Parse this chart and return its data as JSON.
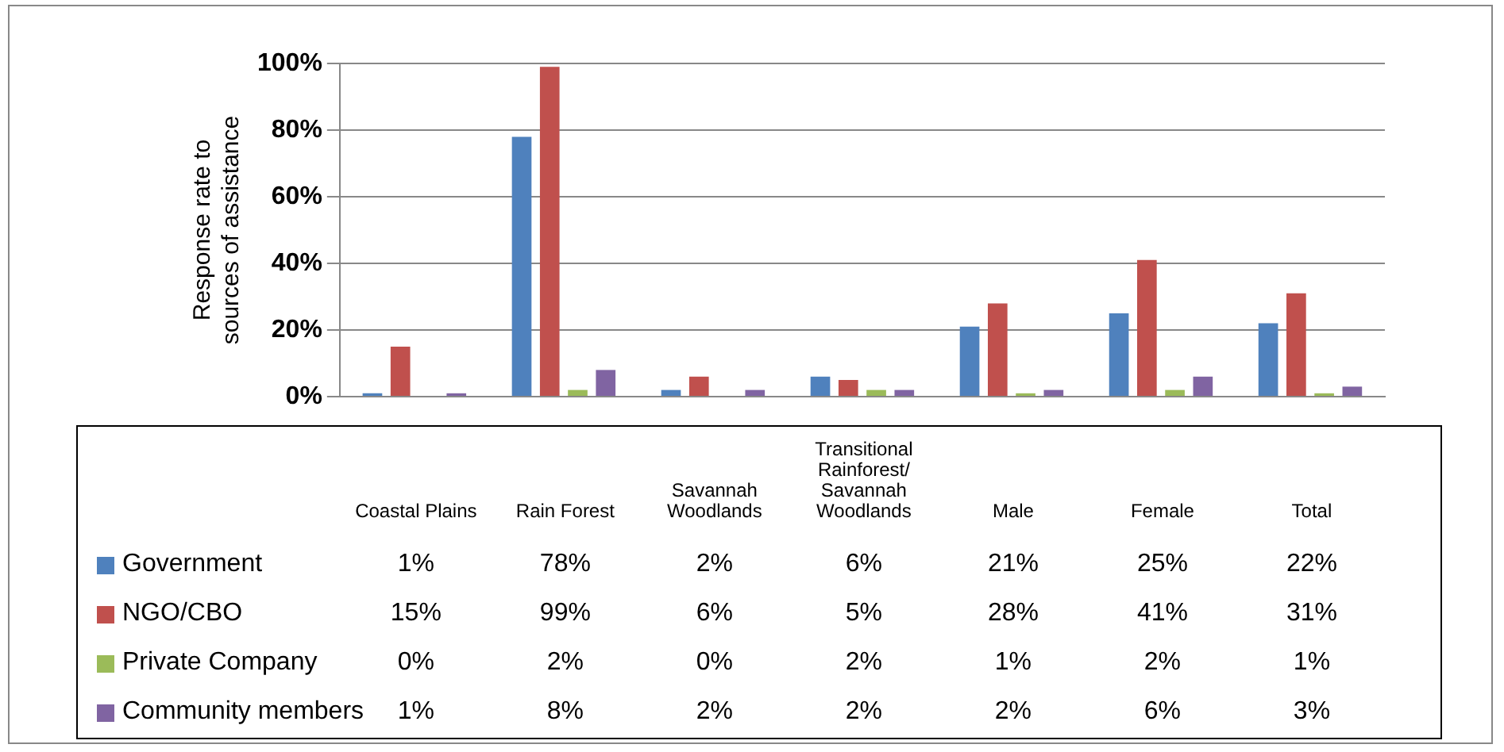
{
  "chart_data": {
    "type": "bar",
    "ylabel": "Response rate to sources of assistance",
    "categories": [
      "Coastal Plains",
      "Rain Forest",
      "Savannah Woodlands",
      "Transitional Rainforest/ Savannah Woodlands",
      "Male",
      "Female",
      "Total"
    ],
    "series": [
      {
        "name": "Government",
        "color": "#4f81bd",
        "values": [
          1,
          78,
          2,
          6,
          21,
          25,
          22
        ],
        "value_labels": [
          "1%",
          "78%",
          "2%",
          "6%",
          "21%",
          "25%",
          "22%"
        ]
      },
      {
        "name": "NGO/CBO",
        "color": "#c0504d",
        "values": [
          15,
          99,
          6,
          5,
          28,
          41,
          31
        ],
        "value_labels": [
          "15%",
          "99%",
          "6%",
          "5%",
          "28%",
          "41%",
          "31%"
        ]
      },
      {
        "name": "Private Company",
        "color": "#9bbb59",
        "values": [
          0,
          2,
          0,
          2,
          1,
          2,
          1
        ],
        "value_labels": [
          "0%",
          "2%",
          "0%",
          "2%",
          "1%",
          "2%",
          "1%"
        ]
      },
      {
        "name": "Community members",
        "color": "#8064a2",
        "values": [
          1,
          8,
          2,
          2,
          2,
          6,
          3
        ],
        "value_labels": [
          "1%",
          "8%",
          "2%",
          "2%",
          "2%",
          "6%",
          "3%"
        ]
      }
    ],
    "ylim": [
      0,
      100
    ],
    "yticks": [
      {
        "value": 0,
        "label": "0%"
      },
      {
        "value": 20,
        "label": "20%"
      },
      {
        "value": 40,
        "label": "40%"
      },
      {
        "value": 60,
        "label": "60%"
      },
      {
        "value": 80,
        "label": "80%"
      },
      {
        "value": 100,
        "label": "100%"
      }
    ],
    "grid": "y",
    "legend": "bottom"
  }
}
